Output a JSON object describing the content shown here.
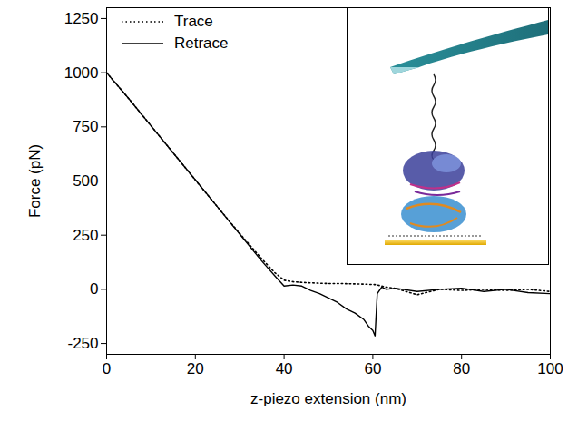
{
  "chart_data": {
    "type": "line",
    "x_label": "z-piezo extension (nm)",
    "y_label": "Force (pN)",
    "xlim": [
      0,
      100
    ],
    "xticks": [
      0,
      20,
      40,
      60,
      80,
      100
    ],
    "ylim": [
      -300,
      1300
    ],
    "yticks": [
      -250,
      0,
      250,
      500,
      750,
      1000,
      1250
    ],
    "legend": "top-left",
    "x": [
      0,
      5,
      10,
      15,
      20,
      25,
      30,
      35,
      38,
      40,
      42,
      44,
      46,
      48,
      50,
      52,
      54,
      56,
      58,
      59,
      60,
      60.5,
      61,
      62,
      63,
      65,
      70,
      75,
      80,
      85,
      90,
      95,
      100
    ],
    "series": [
      {
        "name": "Trace",
        "color": "#000000",
        "line_style": "dotted",
        "values": [
          1000,
          880,
          755,
          630,
          505,
          380,
          258,
          140,
          75,
          42,
          35,
          32,
          30,
          28,
          27,
          27,
          26,
          25,
          24,
          23,
          22,
          22,
          20,
          15,
          10,
          5,
          -25,
          0,
          -5,
          0,
          -5,
          0,
          -10
        ]
      },
      {
        "name": "Retrace",
        "color": "#000000",
        "line_style": "solid",
        "values": [
          1000,
          880,
          755,
          630,
          505,
          380,
          255,
          130,
          60,
          15,
          20,
          15,
          -5,
          -20,
          -40,
          -60,
          -90,
          -110,
          -140,
          -170,
          -190,
          -215,
          -20,
          10,
          0,
          5,
          -10,
          0,
          5,
          -10,
          0,
          -15,
          -20
        ]
      }
    ]
  }
}
